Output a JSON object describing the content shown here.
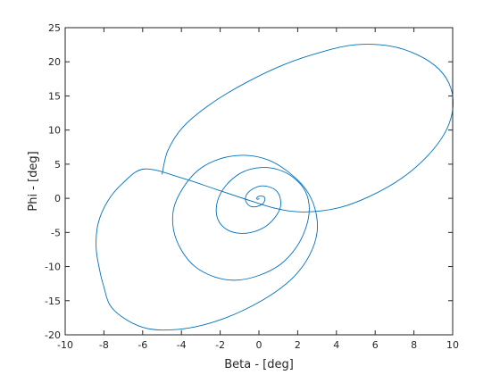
{
  "chart_data": {
    "type": "line",
    "title": "",
    "xlabel": "Beta - [deg]",
    "ylabel": "Phi - [deg]",
    "xlim": [
      -10,
      10
    ],
    "ylim": [
      -20,
      25
    ],
    "xticks": [
      -10,
      -8,
      -6,
      -4,
      -2,
      0,
      2,
      4,
      6,
      8,
      10
    ],
    "yticks": [
      -20,
      -15,
      -10,
      -5,
      0,
      5,
      10,
      15,
      20,
      25
    ],
    "grid": false,
    "legend": "none",
    "series_color": "#0072bd",
    "series": [
      {
        "points": [
          [
            -5.0,
            3.5
          ],
          [
            -4.7,
            7.0
          ],
          [
            -3.9,
            10.5
          ],
          [
            -2.5,
            13.8
          ],
          [
            -0.7,
            16.9
          ],
          [
            1.3,
            19.6
          ],
          [
            3.3,
            21.5
          ],
          [
            5.0,
            22.5
          ],
          [
            6.8,
            22.3
          ],
          [
            8.2,
            21.0
          ],
          [
            9.3,
            18.9
          ],
          [
            9.9,
            16.2
          ],
          [
            10.0,
            13.0
          ],
          [
            9.6,
            9.6
          ],
          [
            8.7,
            6.2
          ],
          [
            7.4,
            3.0
          ],
          [
            5.8,
            0.4
          ],
          [
            4.1,
            -1.4
          ],
          [
            2.3,
            -2.0
          ],
          [
            0.9,
            -1.5
          ],
          [
            -0.5,
            -0.3
          ],
          [
            -2.2,
            1.3
          ],
          [
            -4.0,
            3.0
          ],
          [
            -5.9,
            4.3
          ],
          [
            -7.0,
            2.3
          ],
          [
            -7.8,
            -0.4
          ],
          [
            -8.3,
            -3.7
          ],
          [
            -8.4,
            -7.3
          ],
          [
            -8.2,
            -10.8
          ],
          [
            -8.0,
            -13.0
          ],
          [
            -7.7,
            -15.6
          ],
          [
            -7.0,
            -17.5
          ],
          [
            -6.0,
            -18.9
          ],
          [
            -5.0,
            -19.3
          ],
          [
            -3.6,
            -19.0
          ],
          [
            -2.2,
            -18.0
          ],
          [
            -0.8,
            -16.4
          ],
          [
            0.6,
            -14.2
          ],
          [
            1.8,
            -11.5
          ],
          [
            2.6,
            -8.4
          ],
          [
            3.0,
            -5.0
          ],
          [
            2.9,
            -1.6
          ],
          [
            2.4,
            1.4
          ],
          [
            1.5,
            3.9
          ],
          [
            0.5,
            5.6
          ],
          [
            -0.7,
            6.3
          ],
          [
            -2.0,
            5.8
          ],
          [
            -3.1,
            4.2
          ],
          [
            -3.9,
            1.6
          ],
          [
            -4.4,
            -1.5
          ],
          [
            -4.4,
            -4.7
          ],
          [
            -4.0,
            -7.6
          ],
          [
            -3.3,
            -10.0
          ],
          [
            -2.3,
            -11.5
          ],
          [
            -1.2,
            -12.0
          ],
          [
            0.0,
            -11.3
          ],
          [
            1.1,
            -9.7
          ],
          [
            1.9,
            -7.3
          ],
          [
            2.4,
            -4.5
          ],
          [
            2.6,
            -1.6
          ],
          [
            2.4,
            1.0
          ],
          [
            1.8,
            3.0
          ],
          [
            1.0,
            4.2
          ],
          [
            0.1,
            4.5
          ],
          [
            -0.8,
            3.9
          ],
          [
            -1.5,
            2.5
          ],
          [
            -2.0,
            0.6
          ],
          [
            -2.2,
            -1.4
          ],
          [
            -2.1,
            -3.2
          ],
          [
            -1.7,
            -4.5
          ],
          [
            -1.1,
            -5.1
          ],
          [
            -0.4,
            -5.0
          ],
          [
            0.3,
            -4.2
          ],
          [
            0.8,
            -2.9
          ],
          [
            1.1,
            -1.4
          ],
          [
            1.1,
            0.0
          ],
          [
            0.9,
            1.1
          ],
          [
            0.5,
            1.7
          ],
          [
            0.1,
            1.8
          ],
          [
            -0.3,
            1.4
          ],
          [
            -0.6,
            0.7
          ],
          [
            -0.7,
            -0.1
          ],
          [
            -0.6,
            -0.8
          ],
          [
            -0.4,
            -1.2
          ],
          [
            -0.1,
            -1.2
          ],
          [
            0.2,
            -0.8
          ],
          [
            0.3,
            -0.3
          ],
          [
            0.3,
            0.1
          ],
          [
            0.2,
            0.3
          ],
          [
            0.0,
            0.3
          ],
          [
            -0.1,
            0.1
          ],
          [
            -0.1,
            -0.1
          ],
          [
            0.0,
            -0.1
          ],
          [
            0.0,
            0.0
          ]
        ]
      }
    ]
  }
}
